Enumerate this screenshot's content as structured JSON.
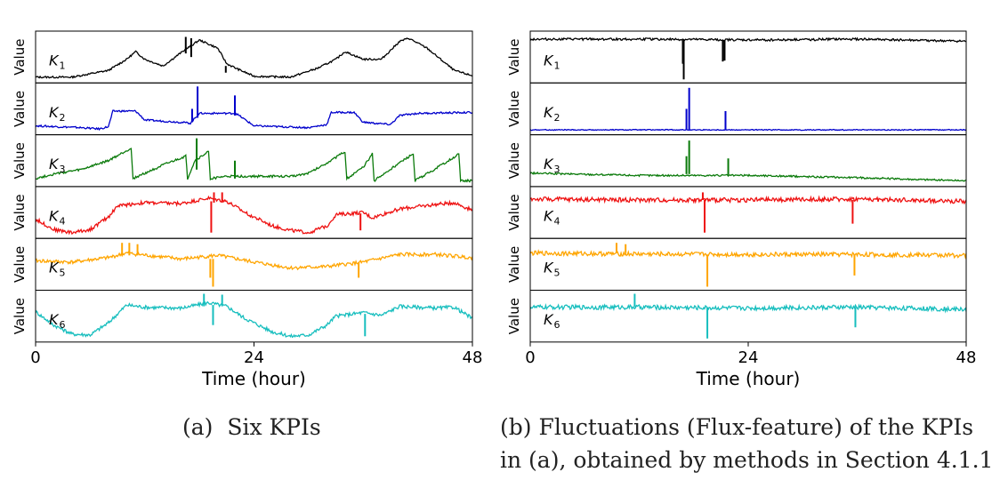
{
  "chart_data": [
    {
      "id": "a",
      "type": "line",
      "caption_label": "(a)",
      "caption_text": "Six KPIs",
      "xlabel": "Time (hour)",
      "xticks": [
        "0",
        "24",
        "48"
      ],
      "xlim": [
        0,
        48
      ],
      "ylabel": "Value",
      "panels": [
        {
          "label": "K",
          "subscript": "1",
          "color": "#000000",
          "base": [
            [
              0,
              0.05
            ],
            [
              4,
              0.05
            ],
            [
              8,
              0.2
            ],
            [
              10,
              0.45
            ],
            [
              11,
              0.62
            ],
            [
              12,
              0.45
            ],
            [
              14,
              0.3
            ],
            [
              16,
              0.6
            ],
            [
              18,
              0.88
            ],
            [
              20,
              0.7
            ],
            [
              21,
              0.35
            ],
            [
              22,
              0.25
            ],
            [
              24,
              0.07
            ],
            [
              28,
              0.05
            ],
            [
              31,
              0.25
            ],
            [
              33,
              0.45
            ],
            [
              34,
              0.62
            ],
            [
              36,
              0.45
            ],
            [
              38,
              0.45
            ],
            [
              40,
              0.85
            ],
            [
              41,
              0.92
            ],
            [
              43,
              0.7
            ],
            [
              46,
              0.2
            ],
            [
              48,
              0.08
            ]
          ],
          "spikes": [
            [
              16.5,
              0.58,
              0.95
            ],
            [
              17.1,
              0.5,
              0.92
            ],
            [
              20.9,
              0.15,
              0.3
            ]
          ],
          "noise": 0.02
        },
        {
          "label": "K",
          "subscript": "2",
          "color": "#0000cc",
          "base": [
            [
              0,
              0.12
            ],
            [
              5,
              0.08
            ],
            [
              7,
              0.05
            ],
            [
              8,
              0.1
            ],
            [
              8.5,
              0.45
            ],
            [
              11,
              0.45
            ],
            [
              12,
              0.25
            ],
            [
              16,
              0.2
            ],
            [
              17,
              0.18
            ],
            [
              18,
              0.4
            ],
            [
              22,
              0.4
            ],
            [
              24,
              0.12
            ],
            [
              30,
              0.08
            ],
            [
              32,
              0.15
            ],
            [
              32.5,
              0.42
            ],
            [
              35,
              0.42
            ],
            [
              36,
              0.2
            ],
            [
              39,
              0.15
            ],
            [
              40,
              0.35
            ],
            [
              42,
              0.4
            ],
            [
              48,
              0.42
            ]
          ],
          "spikes": [
            [
              17.2,
              0.2,
              0.5
            ],
            [
              17.8,
              0.3,
              1.0
            ],
            [
              21.9,
              0.35,
              0.8
            ]
          ],
          "noise": 0.02
        },
        {
          "label": "K",
          "subscript": "3",
          "color": "#0a7a0a",
          "base": [
            [
              0,
              0.1
            ],
            [
              2,
              0.2
            ],
            [
              5,
              0.3
            ],
            [
              8,
              0.5
            ],
            [
              10.5,
              0.78
            ],
            [
              10.7,
              0.1
            ],
            [
              14,
              0.4
            ],
            [
              16.5,
              0.6
            ],
            [
              16.7,
              0.1
            ],
            [
              17.5,
              0.5
            ],
            [
              19,
              0.7
            ],
            [
              19.2,
              0.1
            ],
            [
              21,
              0.15
            ],
            [
              24,
              0.15
            ],
            [
              28,
              0.15
            ],
            [
              30,
              0.22
            ],
            [
              32,
              0.45
            ],
            [
              34,
              0.7
            ],
            [
              34.2,
              0.1
            ],
            [
              36,
              0.35
            ],
            [
              37,
              0.65
            ],
            [
              37.2,
              0.05
            ],
            [
              40,
              0.45
            ],
            [
              41.5,
              0.65
            ],
            [
              41.7,
              0.05
            ],
            [
              45,
              0.45
            ],
            [
              46.5,
              0.65
            ],
            [
              46.7,
              0.05
            ],
            [
              48,
              0.05
            ]
          ],
          "spikes": [
            [
              17.7,
              0.3,
              1.0
            ],
            [
              21.9,
              0.1,
              0.5
            ]
          ],
          "noise": 0.025
        },
        {
          "label": "K",
          "subscript": "4",
          "color": "#ee1111",
          "base": [
            [
              0,
              0.35
            ],
            [
              2,
              0.12
            ],
            [
              4,
              0.05
            ],
            [
              6,
              0.12
            ],
            [
              8,
              0.4
            ],
            [
              9,
              0.65
            ],
            [
              12,
              0.72
            ],
            [
              16,
              0.7
            ],
            [
              19,
              0.82
            ],
            [
              21,
              0.75
            ],
            [
              23,
              0.5
            ],
            [
              26,
              0.2
            ],
            [
              28,
              0.1
            ],
            [
              30,
              0.05
            ],
            [
              32,
              0.2
            ],
            [
              33,
              0.45
            ],
            [
              36,
              0.5
            ],
            [
              37,
              0.38
            ],
            [
              38,
              0.45
            ],
            [
              40,
              0.58
            ],
            [
              44,
              0.68
            ],
            [
              46,
              0.72
            ],
            [
              48,
              0.55
            ]
          ],
          "spikes": [
            [
              19.3,
              0.75,
              0.05
            ],
            [
              19.6,
              0.72,
              0.95
            ],
            [
              20.5,
              0.72,
              0.95
            ],
            [
              35.7,
              0.48,
              0.1
            ]
          ],
          "noise": 0.04
        },
        {
          "label": "K",
          "subscript": "5",
          "color": "#ffa500",
          "base": [
            [
              0,
              0.58
            ],
            [
              4,
              0.55
            ],
            [
              8,
              0.65
            ],
            [
              10,
              0.75
            ],
            [
              16,
              0.62
            ],
            [
              20,
              0.7
            ],
            [
              24,
              0.55
            ],
            [
              28,
              0.42
            ],
            [
              32,
              0.45
            ],
            [
              36,
              0.55
            ],
            [
              40,
              0.72
            ],
            [
              44,
              0.72
            ],
            [
              48,
              0.65
            ]
          ],
          "spikes": [
            [
              9.5,
              0.7,
              0.98
            ],
            [
              10.3,
              0.7,
              0.98
            ],
            [
              11.2,
              0.7,
              0.95
            ],
            [
              19.5,
              0.62,
              0.0
            ],
            [
              19.2,
              0.62,
              0.2
            ],
            [
              35.5,
              0.55,
              0.2
            ]
          ],
          "noise": 0.04
        },
        {
          "label": "K",
          "subscript": "6",
          "color": "#17bebe",
          "base": [
            [
              0,
              0.6
            ],
            [
              2,
              0.3
            ],
            [
              4,
              0.1
            ],
            [
              6,
              0.08
            ],
            [
              8,
              0.35
            ],
            [
              10,
              0.75
            ],
            [
              12,
              0.7
            ],
            [
              16,
              0.68
            ],
            [
              19,
              0.8
            ],
            [
              21,
              0.72
            ],
            [
              23,
              0.45
            ],
            [
              26,
              0.15
            ],
            [
              28,
              0.05
            ],
            [
              30,
              0.08
            ],
            [
              32,
              0.3
            ],
            [
              33,
              0.5
            ],
            [
              36,
              0.58
            ],
            [
              38,
              0.52
            ],
            [
              40,
              0.72
            ],
            [
              44,
              0.68
            ],
            [
              46,
              0.7
            ],
            [
              48,
              0.45
            ]
          ],
          "spikes": [
            [
              18.5,
              0.72,
              1.0
            ],
            [
              19.5,
              0.75,
              0.3
            ],
            [
              20.5,
              0.72,
              0.98
            ],
            [
              36.2,
              0.55,
              0.05
            ]
          ],
          "noise": 0.04
        }
      ]
    },
    {
      "id": "b",
      "type": "line",
      "caption_label": "(b)",
      "caption_text": "Fluctuations (Flux-feature) of the KPIs",
      "caption_text2": "in (a), obtained by methods in Section 4.1.1",
      "xlabel": "Time (hour)",
      "xticks": [
        "0",
        "24",
        "48"
      ],
      "xlim": [
        0,
        48
      ],
      "ylabel": "Value",
      "panels": [
        {
          "label": "K",
          "subscript": "1",
          "color": "#000000",
          "base": [
            [
              0,
              0.9
            ],
            [
              12,
              0.9
            ],
            [
              24,
              0.88
            ],
            [
              36,
              0.9
            ],
            [
              48,
              0.85
            ]
          ],
          "spikes": [
            [
              16.8,
              0.88,
              0.35
            ],
            [
              16.9,
              0.88,
              0.0
            ],
            [
              21.2,
              0.88,
              0.4
            ],
            [
              21.4,
              0.88,
              0.42
            ]
          ],
          "noise": 0.025
        },
        {
          "label": "K",
          "subscript": "2",
          "color": "#0000cc",
          "base": [
            [
              0,
              0.03
            ],
            [
              48,
              0.03
            ]
          ],
          "spikes": [
            [
              17.2,
              0.03,
              0.5
            ],
            [
              17.5,
              0.03,
              0.97
            ],
            [
              21.5,
              0.03,
              0.45
            ]
          ],
          "noise": 0.01
        },
        {
          "label": "K",
          "subscript": "3",
          "color": "#0a7a0a",
          "base": [
            [
              0,
              0.22
            ],
            [
              12,
              0.17
            ],
            [
              24,
              0.17
            ],
            [
              36,
              0.12
            ],
            [
              48,
              0.05
            ]
          ],
          "spikes": [
            [
              17.2,
              0.2,
              0.6
            ],
            [
              17.5,
              0.2,
              0.95
            ],
            [
              21.8,
              0.18,
              0.55
            ]
          ],
          "noise": 0.02
        },
        {
          "label": "K",
          "subscript": "4",
          "color": "#ee1111",
          "base": [
            [
              0,
              0.8
            ],
            [
              12,
              0.78
            ],
            [
              24,
              0.78
            ],
            [
              36,
              0.8
            ],
            [
              48,
              0.75
            ]
          ],
          "spikes": [
            [
              19.2,
              0.78,
              0.05
            ],
            [
              19.0,
              0.78,
              0.95
            ],
            [
              35.5,
              0.78,
              0.25
            ]
          ],
          "noise": 0.05
        },
        {
          "label": "K",
          "subscript": "5",
          "color": "#ffa500",
          "base": [
            [
              0,
              0.75
            ],
            [
              12,
              0.73
            ],
            [
              24,
              0.72
            ],
            [
              36,
              0.72
            ],
            [
              48,
              0.7
            ]
          ],
          "spikes": [
            [
              9.5,
              0.75,
              0.98
            ],
            [
              10.5,
              0.75,
              0.95
            ],
            [
              19.5,
              0.72,
              0.0
            ],
            [
              35.7,
              0.72,
              0.25
            ]
          ],
          "noise": 0.05
        },
        {
          "label": "K",
          "subscript": "6",
          "color": "#17bebe",
          "base": [
            [
              0,
              0.7
            ],
            [
              12,
              0.7
            ],
            [
              24,
              0.68
            ],
            [
              36,
              0.7
            ],
            [
              48,
              0.65
            ]
          ],
          "spikes": [
            [
              11.5,
              0.7,
              1.0
            ],
            [
              19.5,
              0.7,
              0.0
            ],
            [
              35.8,
              0.7,
              0.25
            ]
          ],
          "noise": 0.05
        }
      ]
    }
  ]
}
